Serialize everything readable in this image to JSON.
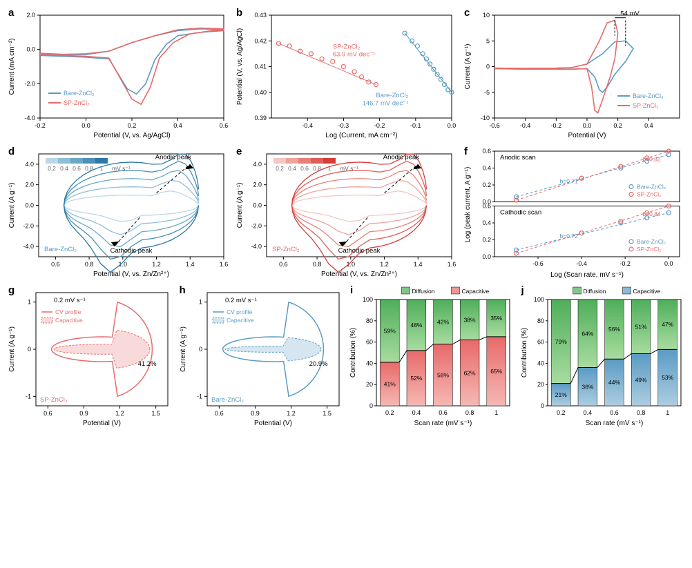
{
  "colors": {
    "bare": "#5a9bc4",
    "sp": "#e86a6a",
    "green_top": "#4fae5a",
    "green_bot": "#a8dca0",
    "red_top": "#e86a6a",
    "red_bot": "#f5b8b4",
    "blue_top": "#5a9bc4",
    "blue_bot": "#aecde0",
    "grid": "#e0e0e0",
    "axis": "#000000"
  },
  "panel_letters": [
    "a",
    "b",
    "c",
    "d",
    "e",
    "f",
    "g",
    "h",
    "i",
    "j"
  ],
  "a": {
    "xlabel": "Potential (V, vs. Ag/AgCl)",
    "ylabel": "Current (mA cm⁻²)",
    "xlim": [
      -0.2,
      0.6
    ],
    "xticks": [
      -0.2,
      0.0,
      0.2,
      0.4,
      0.6
    ],
    "ylim": [
      -4.0,
      2.0
    ],
    "yticks": [
      -4.0,
      -2.0,
      0.0,
      2.0
    ],
    "legend": [
      {
        "label": "Bare-ZnCl₂",
        "color": "#5a9bc4"
      },
      {
        "label": "SP-ZnCl₂",
        "color": "#e86a6a"
      }
    ],
    "series": {
      "bare": [
        [
          -0.2,
          -0.35
        ],
        [
          -0.1,
          -0.4
        ],
        [
          0.0,
          -0.45
        ],
        [
          0.1,
          -0.55
        ],
        [
          0.18,
          -2.3
        ],
        [
          0.22,
          -2.6
        ],
        [
          0.26,
          -2.0
        ],
        [
          0.3,
          -0.6
        ],
        [
          0.35,
          0.3
        ],
        [
          0.4,
          0.8
        ],
        [
          0.5,
          1.0
        ],
        [
          0.6,
          1.1
        ],
        [
          0.6,
          1.15
        ],
        [
          0.5,
          1.2
        ],
        [
          0.4,
          1.1
        ],
        [
          0.3,
          0.8
        ],
        [
          0.2,
          0.4
        ],
        [
          0.1,
          -0.1
        ],
        [
          0.0,
          -0.3
        ],
        [
          -0.1,
          -0.3
        ],
        [
          -0.2,
          -0.25
        ]
      ],
      "sp": [
        [
          -0.2,
          -0.3
        ],
        [
          -0.1,
          -0.35
        ],
        [
          0.0,
          -0.4
        ],
        [
          0.1,
          -0.5
        ],
        [
          0.2,
          -2.9
        ],
        [
          0.24,
          -3.2
        ],
        [
          0.28,
          -2.2
        ],
        [
          0.32,
          -0.5
        ],
        [
          0.38,
          0.4
        ],
        [
          0.45,
          0.9
        ],
        [
          0.55,
          1.1
        ],
        [
          0.6,
          1.1
        ],
        [
          0.6,
          1.2
        ],
        [
          0.5,
          1.25
        ],
        [
          0.4,
          1.15
        ],
        [
          0.3,
          0.8
        ],
        [
          0.2,
          0.4
        ],
        [
          0.1,
          -0.1
        ],
        [
          0.0,
          -0.25
        ],
        [
          -0.1,
          -0.28
        ],
        [
          -0.2,
          -0.22
        ]
      ]
    }
  },
  "b": {
    "xlabel": "Log (Current, mA cm⁻²)",
    "ylabel": "Potential (V, vs. Ag/AgCl)",
    "xlim": [
      -0.5,
      0.0
    ],
    "xticks": [
      -0.4,
      -0.3,
      -0.2,
      -0.1,
      0.0
    ],
    "ylim": [
      0.39,
      0.43
    ],
    "yticks": [
      0.39,
      0.4,
      0.41,
      0.42,
      0.43
    ],
    "series": {
      "sp": {
        "points": [
          [
            -0.48,
            0.419
          ],
          [
            -0.45,
            0.418
          ],
          [
            -0.42,
            0.416
          ],
          [
            -0.39,
            0.415
          ],
          [
            -0.36,
            0.413
          ],
          [
            -0.33,
            0.412
          ],
          [
            -0.3,
            0.41
          ],
          [
            -0.27,
            0.408
          ],
          [
            -0.25,
            0.406
          ],
          [
            -0.23,
            0.404
          ],
          [
            -0.21,
            0.403
          ]
        ],
        "slope_label": "63.9 mV dec⁻¹",
        "name": "SP-ZnCl₂",
        "color": "#e86a6a"
      },
      "bare": {
        "points": [
          [
            -0.13,
            0.423
          ],
          [
            -0.11,
            0.42
          ],
          [
            -0.095,
            0.418
          ],
          [
            -0.08,
            0.415
          ],
          [
            -0.07,
            0.413
          ],
          [
            -0.06,
            0.411
          ],
          [
            -0.05,
            0.409
          ],
          [
            -0.04,
            0.407
          ],
          [
            -0.03,
            0.405
          ],
          [
            -0.02,
            0.403
          ],
          [
            -0.01,
            0.401
          ],
          [
            0.0,
            0.4
          ]
        ],
        "slope_label": "146.7 mV dec⁻¹",
        "name": "Bare-ZnCl₂",
        "color": "#5a9bc4"
      }
    }
  },
  "c": {
    "xlabel": "Potential (V)",
    "ylabel": "Current (A g⁻¹)",
    "xlim": [
      -0.6,
      0.6
    ],
    "xticks": [
      -0.6,
      -0.4,
      -0.2,
      0.0,
      0.2,
      0.4
    ],
    "ylim": [
      -10,
      10
    ],
    "yticks": [
      -10,
      -5,
      0,
      5,
      10
    ],
    "annotation": "54 mV",
    "legend": [
      {
        "label": "Bare-ZnCl₂",
        "color": "#5a9bc4"
      },
      {
        "label": "SP-ZnCl₂",
        "color": "#e86a6a"
      }
    ],
    "series": {
      "bare": [
        [
          -0.6,
          -0.4
        ],
        [
          -0.4,
          -0.5
        ],
        [
          -0.2,
          -0.5
        ],
        [
          -0.1,
          -0.5
        ],
        [
          0.0,
          -0.4
        ],
        [
          0.05,
          -2.0
        ],
        [
          0.08,
          -4.5
        ],
        [
          0.1,
          -5.0
        ],
        [
          0.13,
          -4.0
        ],
        [
          0.18,
          -1.5
        ],
        [
          0.25,
          1.0
        ],
        [
          0.3,
          3.5
        ],
        [
          0.25,
          5.0
        ],
        [
          0.18,
          4.8
        ],
        [
          0.1,
          2.5
        ],
        [
          0.0,
          0.5
        ],
        [
          -0.1,
          -0.2
        ],
        [
          -0.2,
          -0.3
        ],
        [
          -0.4,
          -0.35
        ],
        [
          -0.6,
          -0.3
        ]
      ],
      "sp": [
        [
          -0.6,
          -0.4
        ],
        [
          -0.4,
          -0.5
        ],
        [
          -0.2,
          -0.5
        ],
        [
          -0.1,
          -0.5
        ],
        [
          0.0,
          -0.4
        ],
        [
          0.03,
          -4.0
        ],
        [
          0.05,
          -8.5
        ],
        [
          0.07,
          -9.0
        ],
        [
          0.1,
          -6.5
        ],
        [
          0.15,
          -2.0
        ],
        [
          0.18,
          1.5
        ],
        [
          0.2,
          6.5
        ],
        [
          0.18,
          9.0
        ],
        [
          0.13,
          8.5
        ],
        [
          0.08,
          5.0
        ],
        [
          0.0,
          0.5
        ],
        [
          -0.1,
          -0.2
        ],
        [
          -0.2,
          -0.3
        ],
        [
          -0.4,
          -0.35
        ],
        [
          -0.6,
          -0.3
        ]
      ]
    }
  },
  "d": {
    "xlabel": "Potential (V, vs. Zn/Zn²⁺)",
    "ylabel": "Current (A g⁻¹)",
    "xlim": [
      0.5,
      1.6
    ],
    "xticks": [
      0.6,
      0.8,
      1.0,
      1.2,
      1.4,
      1.6
    ],
    "ylim": [
      -5,
      5
    ],
    "yticks": [
      -4.0,
      -2.0,
      0.0,
      2.0,
      4.0
    ],
    "name": "Bare-ZnCl₂",
    "rate_unit": "mV s⁻¹",
    "rates": [
      0.2,
      0.4,
      0.6,
      0.8,
      1.0
    ],
    "palette": [
      "#bcd7e8",
      "#8fbfd8",
      "#6aa8c8",
      "#4a90b8",
      "#2d78a8"
    ],
    "peak_labels": {
      "anodic": "Anodic peak",
      "cathodic": "Cathodic peak"
    }
  },
  "e": {
    "xlabel": "Potential (V, vs. Zn/Zn²⁺)",
    "ylabel": "Current (A g⁻¹)",
    "xlim": [
      0.5,
      1.6
    ],
    "xticks": [
      0.6,
      0.8,
      1.0,
      1.2,
      1.4,
      1.6
    ],
    "ylim": [
      -5,
      5
    ],
    "yticks": [
      -4.0,
      -2.0,
      0.0,
      2.0,
      4.0
    ],
    "name": "SP-ZnCl₂",
    "rate_unit": "mV s⁻¹",
    "rates": [
      0.2,
      0.4,
      0.6,
      0.8,
      1.0
    ],
    "palette": [
      "#f5c6c2",
      "#efa39d",
      "#e88079",
      "#e05e58",
      "#d83c38"
    ],
    "peak_labels": {
      "anodic": "Anodic peak",
      "cathodic": "Cathodic peak"
    }
  },
  "f": {
    "xlabel": "Log (Scan rate, mV s⁻¹)",
    "ylabel": "Log (peak current, A g⁻¹)",
    "xlim": [
      -0.8,
      0.05
    ],
    "xticks": [
      -0.6,
      -0.4,
      -0.2,
      0.0
    ],
    "top": {
      "title": "Anodic scan",
      "ylim": [
        0,
        0.6
      ],
      "yticks": [
        0,
        0.2,
        0.4,
        0.6
      ],
      "b_bare": "b=0.71",
      "b_sp": "b=0.82",
      "bare": [
        [
          -0.7,
          0.06
        ],
        [
          -0.4,
          0.28
        ],
        [
          -0.22,
          0.4
        ],
        [
          -0.1,
          0.48
        ],
        [
          0.0,
          0.56
        ]
      ],
      "sp": [
        [
          -0.7,
          0.02
        ],
        [
          -0.4,
          0.28
        ],
        [
          -0.22,
          0.42
        ],
        [
          -0.1,
          0.52
        ],
        [
          0.0,
          0.6
        ]
      ]
    },
    "bot": {
      "title": "Cathodic scan",
      "ylim": [
        0,
        0.6
      ],
      "yticks": [
        0,
        0.2,
        0.4,
        0.6
      ],
      "b_bare": "b=0.72",
      "b_sp": "b=0.84",
      "bare": [
        [
          -0.7,
          0.08
        ],
        [
          -0.4,
          0.28
        ],
        [
          -0.22,
          0.4
        ],
        [
          -0.1,
          0.46
        ],
        [
          0.0,
          0.52
        ]
      ],
      "sp": [
        [
          -0.7,
          0.04
        ],
        [
          -0.4,
          0.28
        ],
        [
          -0.22,
          0.42
        ],
        [
          -0.1,
          0.52
        ],
        [
          0.0,
          0.6
        ]
      ]
    },
    "legend": [
      {
        "label": "Bare-ZnCl₂",
        "color": "#5a9bc4"
      },
      {
        "label": "SP-ZnCl₂",
        "color": "#e86a6a"
      }
    ]
  },
  "g": {
    "xlabel": "Potential (V)",
    "ylabel": "Current (A g⁻¹)",
    "xlim": [
      0.5,
      1.6
    ],
    "xticks": [
      0.6,
      0.9,
      1.2,
      1.5
    ],
    "ylim": [
      -1.2,
      1.2
    ],
    "yticks": [
      -1,
      0,
      1
    ],
    "name": "SP-ZnCl₂",
    "rate": "0.2 mV s⁻¹",
    "pct": "41.2%",
    "legend": [
      {
        "label": "CV profile",
        "style": "solid"
      },
      {
        "label": "Capacitive",
        "style": "fill"
      }
    ],
    "color": "#e86a6a"
  },
  "h": {
    "xlabel": "Potential (V)",
    "ylabel": "Current (A g⁻¹)",
    "xlim": [
      0.5,
      1.6
    ],
    "xticks": [
      0.6,
      0.9,
      1.2,
      1.5
    ],
    "ylim": [
      -1.2,
      1.2
    ],
    "yticks": [
      -1,
      0,
      1
    ],
    "name": "Bare-ZnCl₂",
    "rate": "0.2 mV s⁻¹",
    "pct": "20.9%",
    "legend": [
      {
        "label": "CV profile",
        "style": "solid"
      },
      {
        "label": "Capacitive",
        "style": "fill"
      }
    ],
    "color": "#5a9bc4"
  },
  "i": {
    "xlabel": "Scan rate (mV s⁻¹)",
    "ylabel": "Contribution (%)",
    "xticks": [
      0.2,
      0.4,
      0.6,
      0.8,
      1
    ],
    "ylim": [
      0,
      100
    ],
    "yticks": [
      0,
      20,
      40,
      60,
      80,
      100
    ],
    "legend": [
      {
        "label": "Diffusion",
        "color": "#4fae5a"
      },
      {
        "label": "Capacitive",
        "color": "#e86a6a"
      }
    ],
    "data": [
      {
        "x": 0.2,
        "diff": 59,
        "cap": 41
      },
      {
        "x": 0.4,
        "diff": 48,
        "cap": 52
      },
      {
        "x": 0.6,
        "diff": 42,
        "cap": 58
      },
      {
        "x": 0.8,
        "diff": 38,
        "cap": 62
      },
      {
        "x": 1.0,
        "diff": 35,
        "cap": 65
      }
    ]
  },
  "j": {
    "xlabel": "Scan rate (mV s⁻¹)",
    "ylabel": "Contribution (%)",
    "xticks": [
      0.2,
      0.4,
      0.6,
      0.8,
      1
    ],
    "ylim": [
      0,
      100
    ],
    "yticks": [
      0,
      20,
      40,
      60,
      80,
      100
    ],
    "legend": [
      {
        "label": "Diffusion",
        "color": "#4fae5a"
      },
      {
        "label": "Capacitive",
        "color": "#5a9bc4"
      }
    ],
    "data": [
      {
        "x": 0.2,
        "diff": 79,
        "cap": 21
      },
      {
        "x": 0.4,
        "diff": 64,
        "cap": 36
      },
      {
        "x": 0.6,
        "diff": 56,
        "cap": 44
      },
      {
        "x": 0.8,
        "diff": 51,
        "cap": 49
      },
      {
        "x": 1.0,
        "diff": 47,
        "cap": 53
      }
    ]
  }
}
